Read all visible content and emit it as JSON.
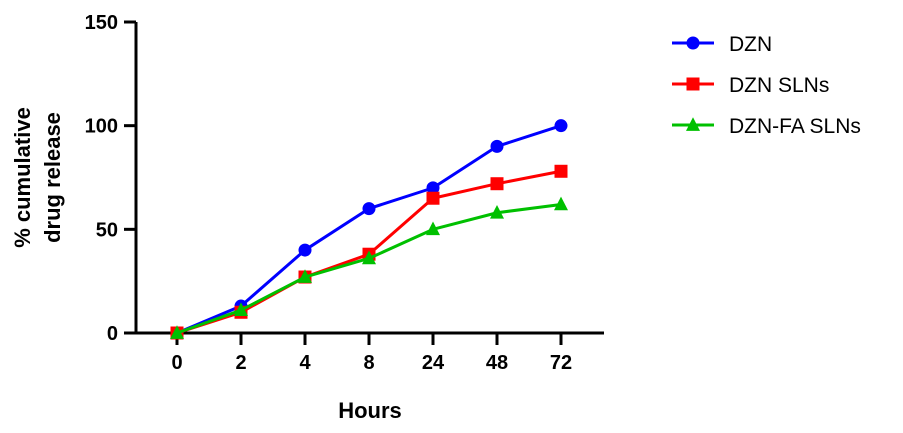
{
  "chart_data": {
    "type": "line",
    "title": "",
    "xlabel": "Hours",
    "ylabel_lines": [
      "% cumulative",
      "drug release"
    ],
    "categories": [
      "0",
      "2",
      "4",
      "8",
      "24",
      "48",
      "72"
    ],
    "ylim": [
      0,
      150
    ],
    "yticks": [
      0,
      50,
      100,
      150
    ],
    "grid": false,
    "legend_position": "top-right, outside plot",
    "series": [
      {
        "name": "DZN",
        "color": "#0000ff",
        "marker": "circle",
        "values": [
          0,
          13,
          40,
          60,
          70,
          90,
          100
        ]
      },
      {
        "name": "DZN SLNs",
        "color": "#ff0000",
        "marker": "square",
        "values": [
          0,
          10,
          27,
          38,
          65,
          72,
          78
        ]
      },
      {
        "name": "DZN-FA SLNs",
        "color": "#00c000",
        "marker": "triangle",
        "values": [
          0,
          11,
          27,
          36,
          50,
          58,
          62
        ]
      }
    ]
  }
}
